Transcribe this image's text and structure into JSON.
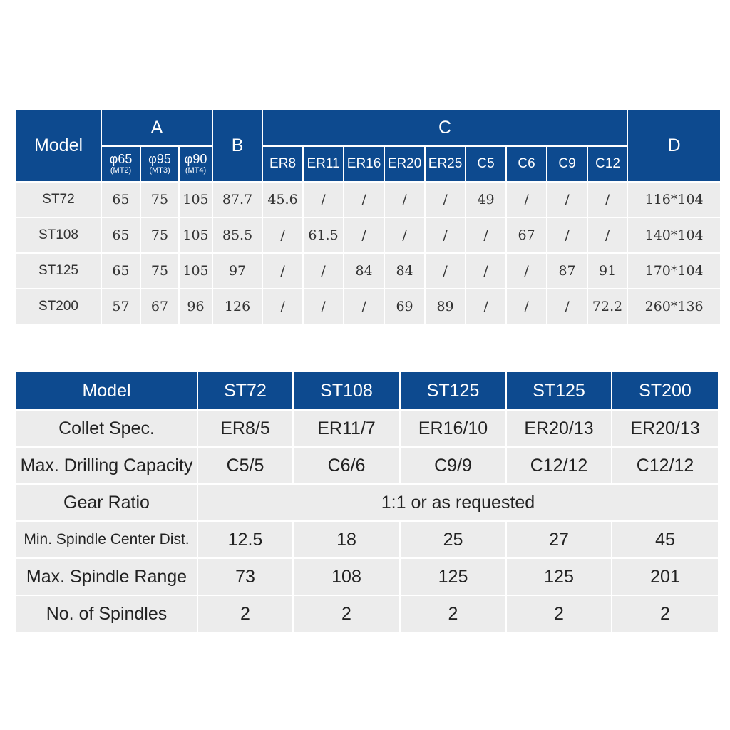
{
  "table1": {
    "model_header": "Model",
    "group_a": "A",
    "group_b": "B",
    "group_c": "C",
    "group_d": "D",
    "a_cols": [
      {
        "size": "φ65",
        "mt": "(MT2)"
      },
      {
        "size": "φ95",
        "mt": "(MT3)"
      },
      {
        "size": "φ90",
        "mt": "(MT4)"
      }
    ],
    "c_cols": [
      "ER8",
      "ER11",
      "ER16",
      "ER20",
      "ER25",
      "C5",
      "C6",
      "C9",
      "C12"
    ],
    "rows": [
      {
        "model": "ST72",
        "a": [
          "65",
          "75",
          "105"
        ],
        "b": "87.7",
        "c": [
          "45.6",
          "/",
          "/",
          "/",
          "/",
          "49",
          "/",
          "/",
          "/"
        ],
        "d": "116*104"
      },
      {
        "model": "ST108",
        "a": [
          "65",
          "75",
          "105"
        ],
        "b": "85.5",
        "c": [
          "/",
          "61.5",
          "/",
          "/",
          "/",
          "/",
          "67",
          "/",
          "/"
        ],
        "d": "140*104"
      },
      {
        "model": "ST125",
        "a": [
          "65",
          "75",
          "105"
        ],
        "b": "97",
        "c": [
          "/",
          "/",
          "84",
          "84",
          "/",
          "/",
          "/",
          "87",
          "91"
        ],
        "d": "170*104"
      },
      {
        "model": "ST200",
        "a": [
          "57",
          "67",
          "96"
        ],
        "b": "126",
        "c": [
          "/",
          "/",
          "/",
          "69",
          "89",
          "/",
          "/",
          "/",
          "72.2"
        ],
        "d": "260*136"
      }
    ]
  },
  "table2": {
    "model_header": "Model",
    "models": [
      "ST72",
      "ST108",
      "ST125",
      "ST125",
      "ST200"
    ],
    "rows": [
      {
        "label": "Collet Spec.",
        "values": [
          "ER8/5",
          "ER11/7",
          "ER16/10",
          "ER20/13",
          "ER20/13"
        ]
      },
      {
        "label": "Max. Drilling Capacity",
        "values": [
          "C5/5",
          "C6/6",
          "C9/9",
          "C12/12",
          "C12/12"
        ]
      },
      {
        "label": "Gear Ratio",
        "merged": "1:1 or as requested"
      },
      {
        "label": "Min. Spindle Center Dist.",
        "values": [
          "12.5",
          "18",
          "25",
          "27",
          "45"
        ]
      },
      {
        "label": "Max. Spindle Range",
        "values": [
          "73",
          "108",
          "125",
          "125",
          "201"
        ]
      },
      {
        "label": "No. of Spindles",
        "values": [
          "2",
          "2",
          "2",
          "2",
          "2"
        ]
      }
    ]
  }
}
